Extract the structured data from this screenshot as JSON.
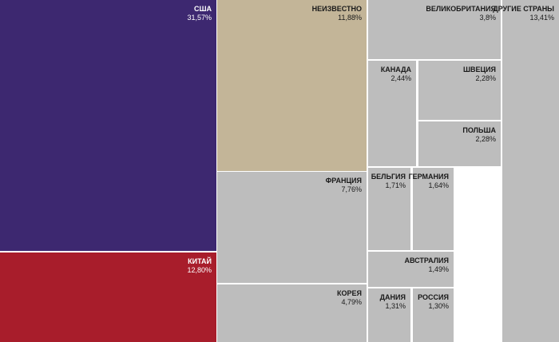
{
  "chart_data": {
    "type": "treemap",
    "title": "",
    "items": [
      {
        "name": "США",
        "value": 31.57,
        "label": "31,57%",
        "color": "#3d2870"
      },
      {
        "name": "КИТАЙ",
        "value": 12.8,
        "label": "12,80%",
        "color": "#a81d2b"
      },
      {
        "name": "НЕИЗВЕСТНО",
        "value": 11.88,
        "label": "11,88%",
        "color": "#c3b598"
      },
      {
        "name": "ФРАНЦИЯ",
        "value": 7.76,
        "label": "7,76%",
        "color": "#bdbdbd"
      },
      {
        "name": "КОРЕЯ",
        "value": 4.79,
        "label": "4,79%",
        "color": "#bdbdbd"
      },
      {
        "name": "ВЕЛИКОБРИТАНИЯ",
        "value": 3.8,
        "label": "3,8%",
        "color": "#bdbdbd"
      },
      {
        "name": "ДРУГИЕ СТРАНЫ",
        "value": 13.41,
        "label": "13,41%",
        "color": "#bdbdbd"
      },
      {
        "name": "КАНАДА",
        "value": 2.44,
        "label": "2,44%",
        "color": "#bdbdbd"
      },
      {
        "name": "ШВЕЦИЯ",
        "value": 2.28,
        "label": "2,28%",
        "color": "#bdbdbd"
      },
      {
        "name": "ПОЛЬША",
        "value": 2.28,
        "label": "2,28%",
        "color": "#bdbdbd"
      },
      {
        "name": "БЕЛЬГИЯ",
        "value": 1.71,
        "label": "1,71%",
        "color": "#bdbdbd"
      },
      {
        "name": "ГЕРМАНИЯ",
        "value": 1.64,
        "label": "1,64%",
        "color": "#bdbdbd"
      },
      {
        "name": "АВСТРАЛИЯ",
        "value": 1.49,
        "label": "1,49%",
        "color": "#bdbdbd"
      },
      {
        "name": "ДАНИЯ",
        "value": 1.31,
        "label": "1,31%",
        "color": "#bdbdbd"
      },
      {
        "name": "РОССИЯ",
        "value": 1.3,
        "label": "1,30%",
        "color": "#bdbdbd"
      }
    ]
  }
}
